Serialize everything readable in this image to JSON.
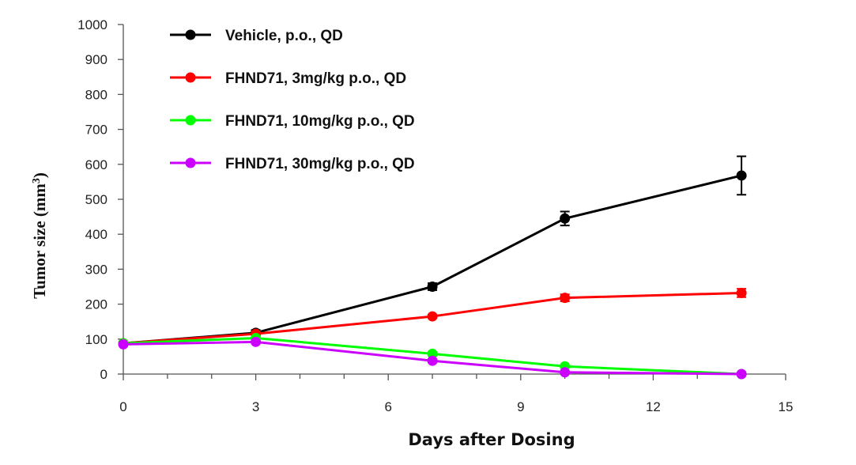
{
  "chart_data": {
    "type": "line",
    "xlabel": "Days after Dosing",
    "ylabel": "Tumor size (mm",
    "ylabel_superscript": "3",
    "ylabel_close": ")",
    "xlim": [
      0,
      15
    ],
    "ylim": [
      0,
      1000
    ],
    "xticks": [
      0,
      3,
      6,
      9,
      12,
      15
    ],
    "yticks": [
      0,
      100,
      200,
      300,
      400,
      500,
      600,
      700,
      800,
      900,
      1000
    ],
    "x_minor_step": 1,
    "grid": false,
    "legend_position": "top-left",
    "series": [
      {
        "name": "Vehicle, p.o., QD",
        "color": "#000000",
        "x": [
          0,
          3,
          7,
          10,
          14
        ],
        "y": [
          88,
          118,
          250,
          445,
          568
        ],
        "error": [
          0,
          8,
          10,
          20,
          55
        ]
      },
      {
        "name": "FHND71, 3mg/kg p.o., QD",
        "color": "#ff0000",
        "x": [
          0,
          3,
          7,
          10,
          14
        ],
        "y": [
          88,
          115,
          165,
          218,
          232
        ],
        "error": [
          0,
          5,
          5,
          10,
          12
        ]
      },
      {
        "name": "FHND71, 10mg/kg p.o., QD",
        "color": "#00ff00",
        "x": [
          0,
          3,
          7,
          10,
          14
        ],
        "y": [
          88,
          103,
          58,
          22,
          0
        ],
        "error": [
          0,
          5,
          5,
          4,
          0
        ]
      },
      {
        "name": "FHND71, 30mg/kg p.o., QD",
        "color": "#cc00ff",
        "x": [
          0,
          3,
          7,
          10,
          14
        ],
        "y": [
          85,
          92,
          38,
          5,
          0
        ],
        "error": [
          0,
          5,
          5,
          3,
          0
        ]
      }
    ]
  }
}
